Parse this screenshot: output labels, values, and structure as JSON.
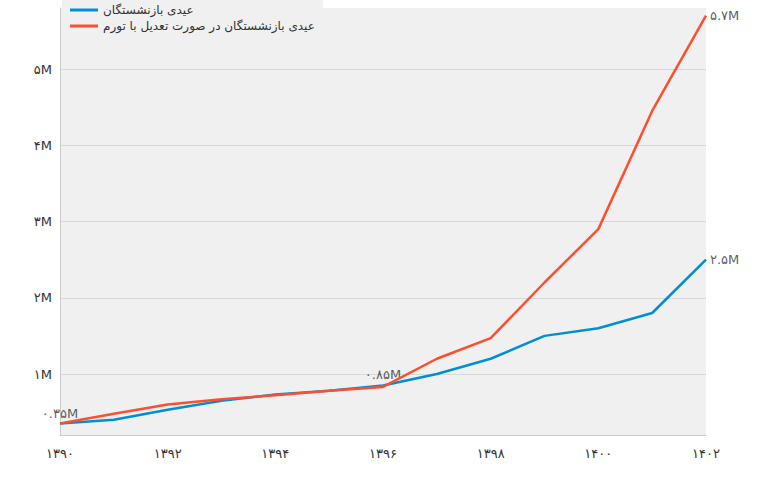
{
  "chart_data": {
    "type": "line",
    "x": [
      1390,
      1391,
      1392,
      1393,
      1394,
      1395,
      1396,
      1397,
      1398,
      1399,
      1400,
      1401,
      1402
    ],
    "series": [
      {
        "name": "عیدی بازنشستگان",
        "color": "#008fd5",
        "values": [
          0.35,
          0.4,
          0.53,
          0.65,
          0.73,
          0.78,
          0.85,
          1.0,
          1.2,
          1.5,
          1.6,
          1.8,
          2.5
        ]
      },
      {
        "name": "عیدی بازنشستگان در صورت تعدیل با تورم",
        "color": "#fc4f30",
        "values": [
          0.35,
          0.48,
          0.6,
          0.67,
          0.72,
          0.78,
          0.83,
          1.2,
          1.47,
          2.2,
          2.9,
          4.45,
          5.7
        ]
      }
    ],
    "xlim": [
      1390,
      1402
    ],
    "xticks": [
      {
        "value": 1390,
        "label": "۱۳۹۰"
      },
      {
        "value": 1392,
        "label": "۱۳۹۲"
      },
      {
        "value": 1394,
        "label": "۱۳۹۴"
      },
      {
        "value": 1396,
        "label": "۱۳۹۶"
      },
      {
        "value": 1398,
        "label": "۱۳۹۸"
      },
      {
        "value": 1400,
        "label": "۱۴۰۰"
      },
      {
        "value": 1402,
        "label": "۱۴۰۲"
      }
    ],
    "ylim": [
      0.2,
      5.8
    ],
    "yticks": [
      {
        "value": 1,
        "label": "۱M"
      },
      {
        "value": 2,
        "label": "۲M"
      },
      {
        "value": 3,
        "label": "۳M"
      },
      {
        "value": 4,
        "label": "۴M"
      },
      {
        "value": 5,
        "label": "۵M"
      }
    ],
    "annotations": [
      {
        "x": 1390,
        "y": 0.35,
        "text": "۰.۳۵M"
      },
      {
        "x": 1396,
        "y": 0.85,
        "text": "۰.۸۵M"
      },
      {
        "x": 1402,
        "y": 2.5,
        "text": "۲.۵M"
      },
      {
        "x": 1402,
        "y": 5.7,
        "text": "۵.۷M"
      }
    ],
    "grid": true,
    "legend": "upper left"
  }
}
